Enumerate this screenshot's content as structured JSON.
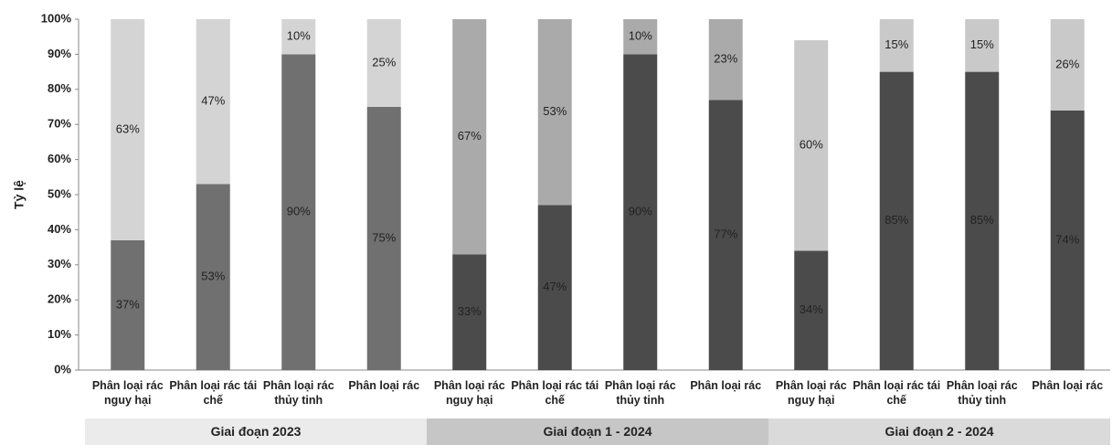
{
  "chart_data": {
    "type": "stacked-bar",
    "y_label": "Tỷ lệ",
    "ylim": [
      0,
      100
    ],
    "yticks": [
      {
        "value": 0,
        "label": "0%"
      },
      {
        "value": 10,
        "label": "10%"
      },
      {
        "value": 20,
        "label": "20%"
      },
      {
        "value": 30,
        "label": "30%"
      },
      {
        "value": 40,
        "label": "40%"
      },
      {
        "value": 50,
        "label": "50%"
      },
      {
        "value": 60,
        "label": "60%"
      },
      {
        "value": 70,
        "label": "70%"
      },
      {
        "value": 80,
        "label": "80%"
      },
      {
        "value": 90,
        "label": "90%"
      },
      {
        "value": 100,
        "label": "100%"
      }
    ],
    "groups": [
      {
        "label": "Giai đoạn 2023",
        "color": "#ebebeb",
        "categories": [
          "Phân loại rác nguy hại",
          "Phân loại rác tái chế",
          "Phân loại rác thủy tinh",
          "Phân loại rác"
        ]
      },
      {
        "label": "Giai đoạn 1 - 2024",
        "color": "#c6c6c6",
        "categories": [
          "Phân loại rác nguy hại",
          "Phân loại rác tái chế",
          "Phân loại rác thủy tinh",
          "Phân loại rác"
        ]
      },
      {
        "label": "Giai đoạn 2 - 2024",
        "color": "#dadada",
        "categories": [
          "Phân loại rác nguy hại",
          "Phân loại rác tái chế",
          "Phân loại rác thủy tinh",
          "Phân loại rác"
        ]
      }
    ],
    "series": [
      {
        "colors": [
          "#707070",
          "#707070",
          "#707070",
          "#707070",
          "#4b4b4b",
          "#4b4b4b",
          "#4b4b4b",
          "#4b4b4b",
          "#4b4b4b",
          "#4b4b4b",
          "#4b4b4b",
          "#4b4b4b"
        ],
        "values": [
          37,
          53,
          90,
          75,
          33,
          47,
          90,
          77,
          34,
          85,
          85,
          74
        ],
        "value_labels": [
          "37%",
          "53%",
          "90%",
          "75%",
          "33%",
          "47%",
          "90%",
          "77%",
          "34%",
          "85%",
          "85%",
          "74%"
        ]
      },
      {
        "colors": [
          "#d4d4d4",
          "#d4d4d4",
          "#d4d4d4",
          "#d4d4d4",
          "#aaaaaa",
          "#aaaaaa",
          "#aaaaaa",
          "#aaaaaa",
          "#c9c9c9",
          "#c9c9c9",
          "#c9c9c9",
          "#c9c9c9"
        ],
        "values": [
          63,
          47,
          10,
          25,
          67,
          53,
          10,
          23,
          60,
          15,
          15,
          26
        ],
        "value_labels": [
          "63%",
          "47%",
          "10%",
          "25%",
          "67%",
          "53%",
          "10%",
          "23%",
          "60%",
          "15%",
          "15%",
          "26%"
        ]
      }
    ]
  }
}
